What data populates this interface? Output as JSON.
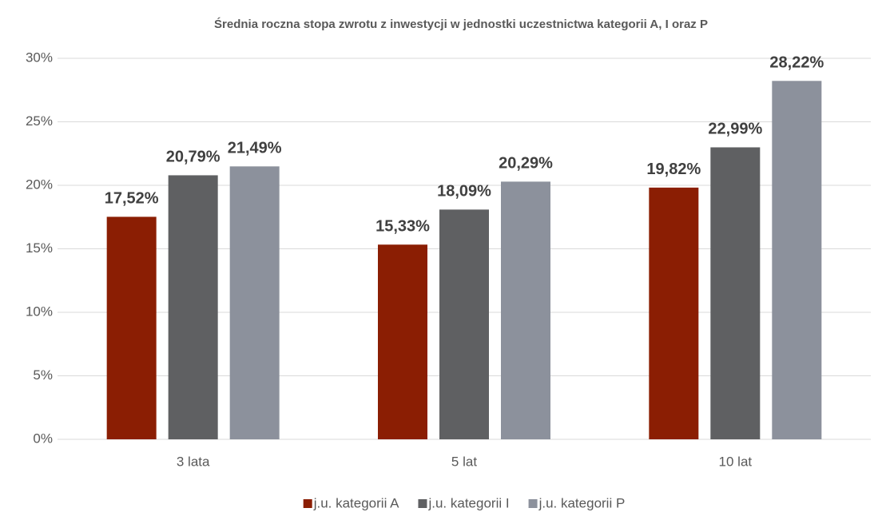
{
  "chart_data": {
    "type": "bar",
    "title": "Średnia roczna stopa zwrotu z inwestycji w jednostki uczestnictwa kategorii A, I oraz P",
    "categories": [
      "3 lata",
      "5 lat",
      "10 lat"
    ],
    "series": [
      {
        "name": "j.u. kategorii A",
        "color": "#8b1e03",
        "values": [
          17.52,
          15.33,
          19.82
        ],
        "value_labels": [
          "17,52%",
          "15,33%",
          "19,82%"
        ]
      },
      {
        "name": "j.u. kategorii I",
        "color": "#5f6062",
        "values": [
          20.79,
          18.09,
          22.99
        ],
        "value_labels": [
          "20,79%",
          "18,09%",
          "22,99%"
        ]
      },
      {
        "name": "j.u. kategorii P",
        "color": "#8c919c",
        "values": [
          21.49,
          20.29,
          28.22
        ],
        "value_labels": [
          "21,49%",
          "20,29%",
          "28,22%"
        ]
      }
    ],
    "ylim": [
      0,
      30
    ],
    "yticks": [
      {
        "value": 0,
        "label": "0%"
      },
      {
        "value": 5,
        "label": "5%"
      },
      {
        "value": 10,
        "label": "10%"
      },
      {
        "value": 15,
        "label": "15%"
      },
      {
        "value": 20,
        "label": "20%"
      },
      {
        "value": 25,
        "label": "25%"
      },
      {
        "value": 30,
        "label": "30%"
      }
    ],
    "grid": true,
    "legend": "bottom"
  }
}
